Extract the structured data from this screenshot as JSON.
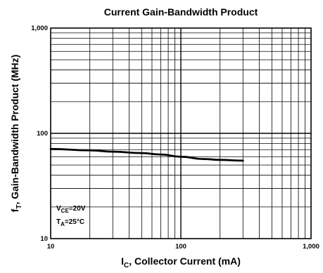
{
  "chart_data": {
    "type": "line",
    "title": "Current Gain-Bandwidth Product",
    "xlabel": {
      "main": "I",
      "sub": "C",
      "rest": ", Collector Current (mA)"
    },
    "ylabel": {
      "main": "f",
      "sub": "T",
      "rest": ", Gain-Bandwidth Product (MHz)"
    },
    "xscale": "log",
    "yscale": "log",
    "xlim": [
      10,
      1000
    ],
    "ylim": [
      10,
      1000
    ],
    "grid": true,
    "xticks": [
      {
        "value": 10,
        "label": "10"
      },
      {
        "value": 100,
        "label": "100"
      },
      {
        "value": 1000,
        "label": "1,000"
      }
    ],
    "yticks": [
      {
        "value": 10,
        "label": "10"
      },
      {
        "value": 100,
        "label": "100"
      },
      {
        "value": 1000,
        "label": "1,000"
      }
    ],
    "conditions": [
      {
        "main": "V",
        "sub": "CE",
        "rest": "=20V"
      },
      {
        "main": "T",
        "sub": "A",
        "rest": "=25°C"
      }
    ],
    "series": [
      {
        "x": [
          10,
          20,
          30,
          50,
          70,
          100,
          150,
          200,
          300
        ],
        "y": [
          71,
          69,
          67,
          65,
          63,
          60,
          57,
          56,
          55
        ]
      }
    ]
  }
}
